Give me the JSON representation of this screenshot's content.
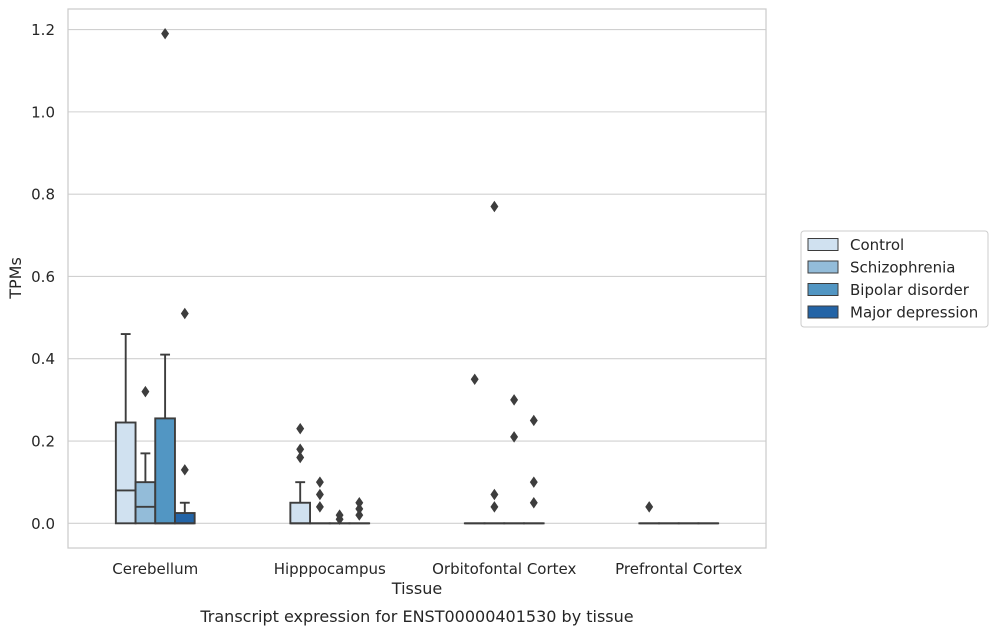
{
  "chart_data": {
    "type": "box",
    "caption": "Transcript expression for ENST00000401530 by tissue",
    "xlabel": "Tissue",
    "ylabel": "TPMs",
    "ylim": [
      -0.06,
      1.25
    ],
    "yticks": [
      0.0,
      0.2,
      0.4,
      0.6,
      0.8,
      1.0,
      1.2
    ],
    "ytick_labels": [
      "0.0",
      "0.2",
      "0.4",
      "0.6",
      "0.8",
      "1.0",
      "1.2"
    ],
    "grid": "horizontal",
    "legend_position": "right",
    "categories": [
      "Cerebellum",
      "Hipppocampus",
      "Orbitofontal Cortex",
      "Prefrontal Cortex"
    ],
    "series": [
      {
        "name": "Control",
        "color": "#d0e1f0",
        "boxes": [
          {
            "q1": 0.0,
            "median": 0.08,
            "q3": 0.245,
            "whislo": 0.0,
            "whishi": 0.46,
            "fliers": []
          },
          {
            "q1": 0.0,
            "median": 0.0,
            "q3": 0.05,
            "whislo": 0.0,
            "whishi": 0.1,
            "fliers": [
              0.16,
              0.18,
              0.23
            ]
          },
          {
            "q1": 0.0,
            "median": 0.0,
            "q3": 0.0,
            "whislo": 0.0,
            "whishi": 0.0,
            "fliers": [
              0.35
            ]
          },
          {
            "q1": 0.0,
            "median": 0.0,
            "q3": 0.0,
            "whislo": 0.0,
            "whishi": 0.0,
            "fliers": [
              0.04
            ]
          }
        ]
      },
      {
        "name": "Schizophrenia",
        "color": "#93bcd9",
        "boxes": [
          {
            "q1": 0.0,
            "median": 0.04,
            "q3": 0.1,
            "whislo": 0.0,
            "whishi": 0.17,
            "fliers": [
              0.32
            ]
          },
          {
            "q1": 0.0,
            "median": 0.0,
            "q3": 0.0,
            "whislo": 0.0,
            "whishi": 0.0,
            "fliers": [
              0.04,
              0.07,
              0.1
            ]
          },
          {
            "q1": 0.0,
            "median": 0.0,
            "q3": 0.0,
            "whislo": 0.0,
            "whishi": 0.0,
            "fliers": [
              0.04,
              0.07,
              0.77
            ]
          },
          {
            "q1": 0.0,
            "median": 0.0,
            "q3": 0.0,
            "whislo": 0.0,
            "whishi": 0.0,
            "fliers": []
          }
        ]
      },
      {
        "name": "Bipolar disorder",
        "color": "#5296c3",
        "boxes": [
          {
            "q1": 0.0,
            "median": 0.0,
            "q3": 0.255,
            "whislo": 0.0,
            "whishi": 0.41,
            "fliers": [
              1.19
            ]
          },
          {
            "q1": 0.0,
            "median": 0.0,
            "q3": 0.0,
            "whislo": 0.0,
            "whishi": 0.0,
            "fliers": [
              0.01,
              0.02
            ]
          },
          {
            "q1": 0.0,
            "median": 0.0,
            "q3": 0.0,
            "whislo": 0.0,
            "whishi": 0.0,
            "fliers": [
              0.21,
              0.3
            ]
          },
          {
            "q1": 0.0,
            "median": 0.0,
            "q3": 0.0,
            "whislo": 0.0,
            "whishi": 0.0,
            "fliers": []
          }
        ]
      },
      {
        "name": "Major depression",
        "color": "#2364a6",
        "boxes": [
          {
            "q1": 0.0,
            "median": 0.0,
            "q3": 0.025,
            "whislo": 0.0,
            "whishi": 0.05,
            "fliers": [
              0.13,
              0.51
            ]
          },
          {
            "q1": 0.0,
            "median": 0.0,
            "q3": 0.0,
            "whislo": 0.0,
            "whishi": 0.0,
            "fliers": [
              0.02,
              0.035,
              0.05
            ]
          },
          {
            "q1": 0.0,
            "median": 0.0,
            "q3": 0.0,
            "whislo": 0.0,
            "whishi": 0.0,
            "fliers": [
              0.05,
              0.1,
              0.25
            ]
          },
          {
            "q1": 0.0,
            "median": 0.0,
            "q3": 0.0,
            "whislo": 0.0,
            "whishi": 0.0,
            "fliers": []
          }
        ]
      }
    ]
  }
}
